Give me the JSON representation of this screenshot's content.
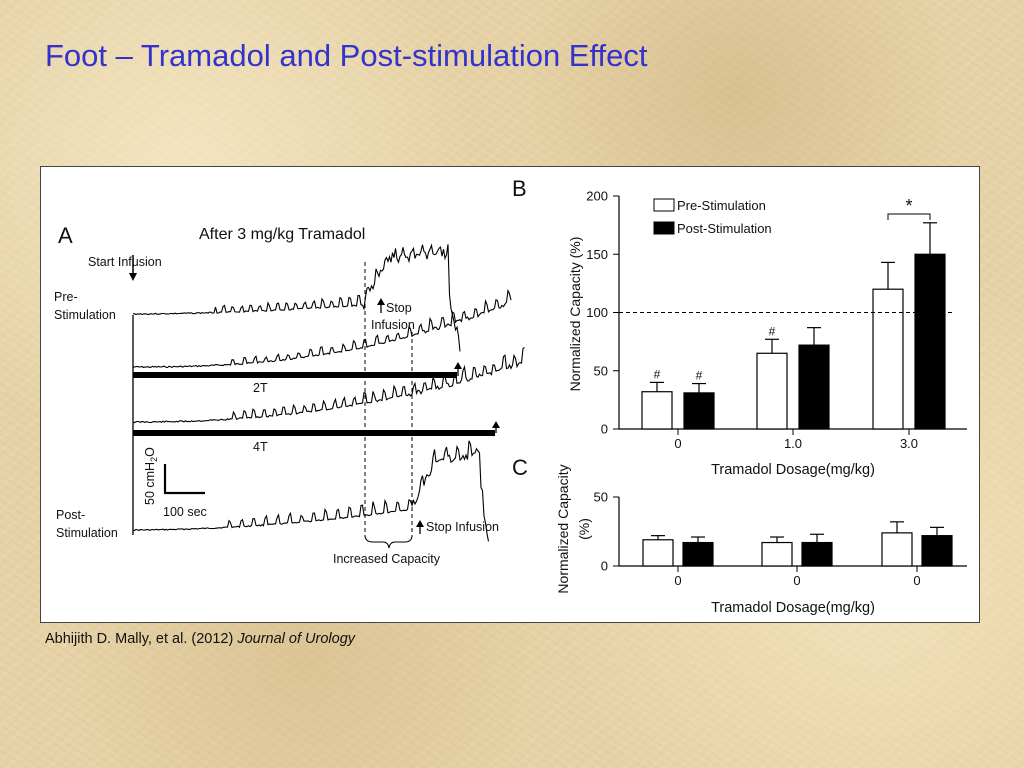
{
  "slide": {
    "title": "Foot – Tramadol and Post-stimulation Effect",
    "citation_authors": "Abhijith D. Mally, et al. (2012)",
    "citation_journal": "Journal of Urology"
  },
  "panel_a": {
    "letter": "A",
    "title": "After 3 mg/kg Tramadol",
    "start_infusion": "Start Infusion",
    "pre_label_1": "Pre-",
    "pre_label_2": "Stimulation",
    "post_label_1": "Post-",
    "post_label_2": "Stimulation",
    "stop_infusion_1a": "Stop",
    "stop_infusion_1b": "Infusion",
    "stop_infusion_2": "Stop Infusion",
    "stim_2t": "2T",
    "stim_4t": "4T",
    "scale_pressure": "50 cmH2O",
    "scale_pressure_main": "50 cmH",
    "scale_pressure_sub": "2",
    "scale_pressure_end": "O",
    "scale_time": "100 sec",
    "increased_capacity": "Increased Capacity"
  },
  "chart_data": [
    {
      "panel": "B",
      "type": "bar",
      "categories": [
        "0",
        "1.0",
        "3.0"
      ],
      "series": [
        {
          "name": "Pre-Stimulation",
          "values": [
            32,
            65,
            120
          ],
          "errors": [
            8,
            12,
            23
          ],
          "color": "#ffffff",
          "markers": [
            "#",
            "#",
            ""
          ]
        },
        {
          "name": "Post-Stimulation",
          "values": [
            31,
            72,
            150
          ],
          "errors": [
            8,
            15,
            27
          ],
          "color": "#000000",
          "markers": [
            "#",
            "",
            ""
          ]
        }
      ],
      "xlabel": "Tramadol Dosage(mg/kg)",
      "ylabel": "Normalized Capacity (%)",
      "ylim": [
        0,
        200
      ],
      "yticks": [
        "0",
        "50",
        "100",
        "150",
        "200"
      ],
      "reference_line": 100,
      "significance": {
        "category": "3.0",
        "label": "*"
      },
      "legend": "top-center"
    },
    {
      "panel": "C",
      "type": "bar",
      "categories": [
        "0",
        "0",
        "0"
      ],
      "series": [
        {
          "name": "Pre-Stimulation",
          "values": [
            19,
            17,
            24
          ],
          "errors": [
            3,
            4,
            8
          ],
          "color": "#ffffff"
        },
        {
          "name": "Post-Stimulation",
          "values": [
            17,
            17,
            22
          ],
          "errors": [
            4,
            6,
            6
          ],
          "color": "#000000"
        }
      ],
      "xlabel": "Tramadol Dosage(mg/kg)",
      "ylabel_line1": "Normalized Capacity",
      "ylabel_line2": "(%)",
      "ylim": [
        0,
        50
      ],
      "yticks": [
        "0",
        "50"
      ]
    }
  ]
}
